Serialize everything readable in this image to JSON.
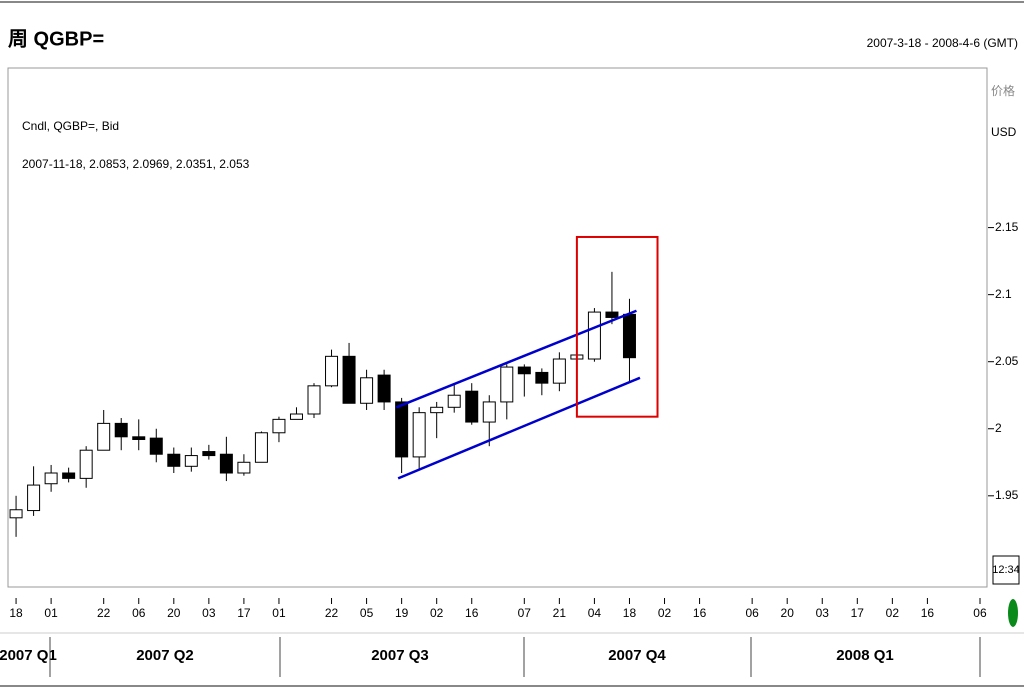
{
  "chart_data": {
    "type": "candlestick",
    "title": "周 QGBP=",
    "date_range": "2007-3-18 - 2008-4-6 (GMT)",
    "info_lines": [
      "Cndl, QGBP=, Bid",
      "2007-11-18, 2.0853, 2.0969, 2.0351, 2.053"
    ],
    "y_axis_label": "价格",
    "y_axis_unit": "USD",
    "time_box": "12:34",
    "x": [
      0,
      1,
      2,
      3,
      4,
      5,
      6,
      7,
      8,
      9,
      10,
      11,
      12,
      13,
      14,
      15,
      16,
      17,
      18,
      19,
      20,
      21,
      22,
      23,
      24,
      25,
      26,
      27,
      28,
      29,
      30,
      31,
      32,
      33,
      34,
      35
    ],
    "open": [
      1.9336,
      1.939,
      1.959,
      1.967,
      1.963,
      1.984,
      2.004,
      1.994,
      1.993,
      1.981,
      1.972,
      1.983,
      1.981,
      1.967,
      1.975,
      1.997,
      2.007,
      2.011,
      2.032,
      2.054,
      2.019,
      2.04,
      2.02,
      1.979,
      2.012,
      2.016,
      2.028,
      2.005,
      2.02,
      2.046,
      2.042,
      2.034,
      2.052,
      2.052,
      2.087,
      2.0853
    ],
    "high": [
      1.95,
      1.972,
      1.973,
      1.971,
      1.987,
      2.014,
      2.008,
      2.007,
      2.0,
      1.986,
      1.986,
      1.988,
      1.994,
      1.981,
      1.998,
      2.009,
      2.016,
      2.034,
      2.059,
      2.064,
      2.044,
      2.044,
      2.023,
      2.016,
      2.02,
      2.033,
      2.034,
      2.025,
      2.048,
      2.048,
      2.045,
      2.057,
      2.059,
      2.09,
      2.117,
      2.0969
    ],
    "low": [
      1.9194,
      1.935,
      1.953,
      1.96,
      1.956,
      1.984,
      1.984,
      1.984,
      1.975,
      1.967,
      1.968,
      1.977,
      1.961,
      1.965,
      1.975,
      1.99,
      2.007,
      2.008,
      2.031,
      2.019,
      2.014,
      2.014,
      1.967,
      1.969,
      1.993,
      2.012,
      2.003,
      1.987,
      2.007,
      2.024,
      2.025,
      2.028,
      2.05,
      2.05,
      2.078,
      2.0351
    ],
    "close": [
      1.9396,
      1.958,
      1.967,
      1.963,
      1.984,
      2.004,
      1.994,
      1.992,
      1.981,
      1.972,
      1.98,
      1.98,
      1.967,
      1.975,
      1.997,
      2.007,
      2.011,
      2.032,
      2.054,
      2.019,
      2.038,
      2.02,
      1.979,
      2.012,
      2.016,
      2.025,
      2.005,
      2.02,
      2.046,
      2.041,
      2.034,
      2.052,
      2.055,
      2.087,
      2.083,
      2.053
    ],
    "up_color": "#ffffff",
    "down_color": "#000000",
    "xlim": [
      -0.46,
      55.4
    ],
    "ylim": [
      1.882,
      2.269
    ],
    "xticks": [
      {
        "value": 0,
        "label": "18"
      },
      {
        "value": 2,
        "label": "01"
      },
      {
        "value": 5,
        "label": "22"
      },
      {
        "value": 7,
        "label": "06"
      },
      {
        "value": 9,
        "label": "20"
      },
      {
        "value": 11,
        "label": "03"
      },
      {
        "value": 13,
        "label": "17"
      },
      {
        "value": 15,
        "label": "01"
      },
      {
        "value": 18,
        "label": "22"
      },
      {
        "value": 20,
        "label": "05"
      },
      {
        "value": 22,
        "label": "19"
      },
      {
        "value": 24,
        "label": "02"
      },
      {
        "value": 26,
        "label": "16"
      },
      {
        "value": 29,
        "label": "07"
      },
      {
        "value": 31,
        "label": "21"
      },
      {
        "value": 33,
        "label": "04"
      },
      {
        "value": 35,
        "label": "18"
      },
      {
        "value": 37,
        "label": "02"
      },
      {
        "value": 39,
        "label": "16"
      },
      {
        "value": 42,
        "label": "06"
      },
      {
        "value": 44,
        "label": "20"
      },
      {
        "value": 46,
        "label": "03"
      },
      {
        "value": 48,
        "label": "17"
      },
      {
        "value": 50,
        "label": "02"
      },
      {
        "value": 52,
        "label": "16"
      },
      {
        "value": 55,
        "label": "06"
      }
    ],
    "yticks": [
      2.15,
      2.1,
      2.05,
      2,
      1.95
    ],
    "quarters": [
      "2007 Q1",
      "2007 Q2",
      "2007 Q3",
      "2007 Q4",
      "2008 Q1"
    ],
    "trendlines": [
      {
        "color": "#0000cc",
        "x": [
          21.7,
          35.4
        ],
        "y": [
          2.016,
          2.088
        ]
      },
      {
        "color": "#0000cc",
        "x": [
          21.8,
          35.6
        ],
        "y": [
          1.963,
          2.038
        ]
      }
    ],
    "highlight": {
      "color": "#dd0000",
      "x": [
        32.0,
        36.6
      ],
      "y": [
        2.009,
        2.143
      ]
    }
  }
}
